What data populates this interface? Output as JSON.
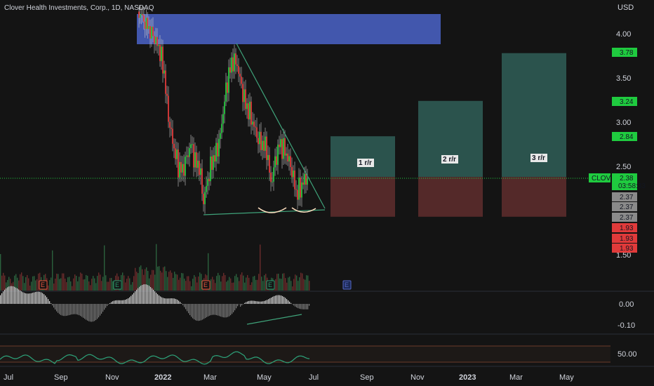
{
  "header": {
    "title": "Clover Health Investments, Corp., 1D, NASDAQ",
    "currency": "USD"
  },
  "colors": {
    "up": "#26c940",
    "down": "#e03a3a",
    "zone_blue": "#4a63c8",
    "target_green": "#2f5e57",
    "stop_red": "#5b2b2b",
    "trendline": "#3fa37a",
    "rsi": "#2da37a",
    "ticker_tag": "#1fcb3f"
  },
  "chart_data": {
    "type": "candlestick",
    "symbol": "CLOV",
    "price_axis": {
      "ticks": [
        4.0,
        3.5,
        3.0,
        2.5,
        1.5
      ],
      "tick_labels": [
        "4.00",
        "3.50",
        "3.00",
        "2.50",
        "1.50"
      ],
      "range": [
        1.5,
        4.2
      ]
    },
    "time_axis": {
      "labels": [
        "Jul",
        "Sep",
        "Nov",
        "2022",
        "Mar",
        "May",
        "Jul",
        "Sep",
        "Nov",
        "2023",
        "Mar",
        "May"
      ]
    },
    "price_tags": [
      {
        "label": "3.78",
        "value": 3.78,
        "color": "green"
      },
      {
        "label": "3.24",
        "value": 3.24,
        "color": "green"
      },
      {
        "label": "2.84",
        "value": 2.84,
        "color": "green"
      },
      {
        "label": "2.38",
        "value": 2.38,
        "color": "green",
        "sub": "03:58:33",
        "ticker": "CLOV"
      },
      {
        "label": "2.37",
        "value": 2.37,
        "color": "gray"
      },
      {
        "label": "2.37",
        "value": 2.37,
        "color": "gray"
      },
      {
        "label": "2.37",
        "value": 2.37,
        "color": "gray"
      },
      {
        "label": "1.93",
        "value": 1.93,
        "color": "red"
      },
      {
        "label": "1.93",
        "value": 1.93,
        "color": "red"
      },
      {
        "label": "1.93",
        "value": 1.93,
        "color": "red"
      }
    ],
    "supply_zone": {
      "from": "Nov 2021",
      "to": "Aug 2022",
      "low": 3.85,
      "high": 4.18
    },
    "targets": [
      {
        "label": "1 r/r",
        "entry": 2.38,
        "target": 2.84,
        "stop": 1.93
      },
      {
        "label": "2 r/r",
        "entry": 2.38,
        "target": 3.24,
        "stop": 1.93
      },
      {
        "label": "3 r/r",
        "entry": 2.38,
        "target": 3.78,
        "stop": 1.93
      }
    ],
    "earnings_markers": [
      "E",
      "E",
      "E",
      "E",
      "E",
      "E"
    ],
    "macd_axis": {
      "ticks": [
        "0.00",
        "-0.10"
      ]
    },
    "rsi_axis": {
      "ticks": [
        "50.00"
      ]
    }
  }
}
